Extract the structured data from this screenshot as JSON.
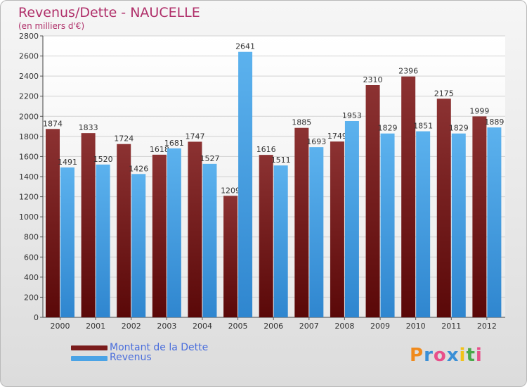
{
  "header": {
    "title": "Revenus/Dette - NAUCELLE",
    "subtitle": "(en milliers d'€)"
  },
  "colors": {
    "dette": "#7a1c1c",
    "revenus": "#4aa3e6",
    "title": "#b0306a"
  },
  "legend": {
    "dette_label": "Montant de la Dette",
    "revenus_label": "Revenus"
  },
  "logo": {
    "text": "Proxiti"
  },
  "chart_data": {
    "type": "bar",
    "categories": [
      "2000",
      "2001",
      "2002",
      "2003",
      "2004",
      "2005",
      "2006",
      "2007",
      "2008",
      "2009",
      "2010",
      "2011",
      "2012"
    ],
    "series": [
      {
        "name": "Montant de la Dette",
        "values": [
          1874,
          1833,
          1724,
          1618,
          1747,
          1209,
          1616,
          1885,
          1749,
          2310,
          2396,
          2175,
          1999
        ]
      },
      {
        "name": "Revenus",
        "values": [
          1491,
          1520,
          1426,
          1681,
          1527,
          2641,
          1511,
          1693,
          1953,
          1829,
          1851,
          1829,
          1889
        ]
      }
    ],
    "ylim": [
      0,
      2800
    ],
    "yticks": [
      0,
      200,
      400,
      600,
      800,
      1000,
      1200,
      1400,
      1600,
      1800,
      2000,
      2200,
      2400,
      2600,
      2800
    ],
    "grid": true,
    "legend_position": "bottom-left"
  }
}
